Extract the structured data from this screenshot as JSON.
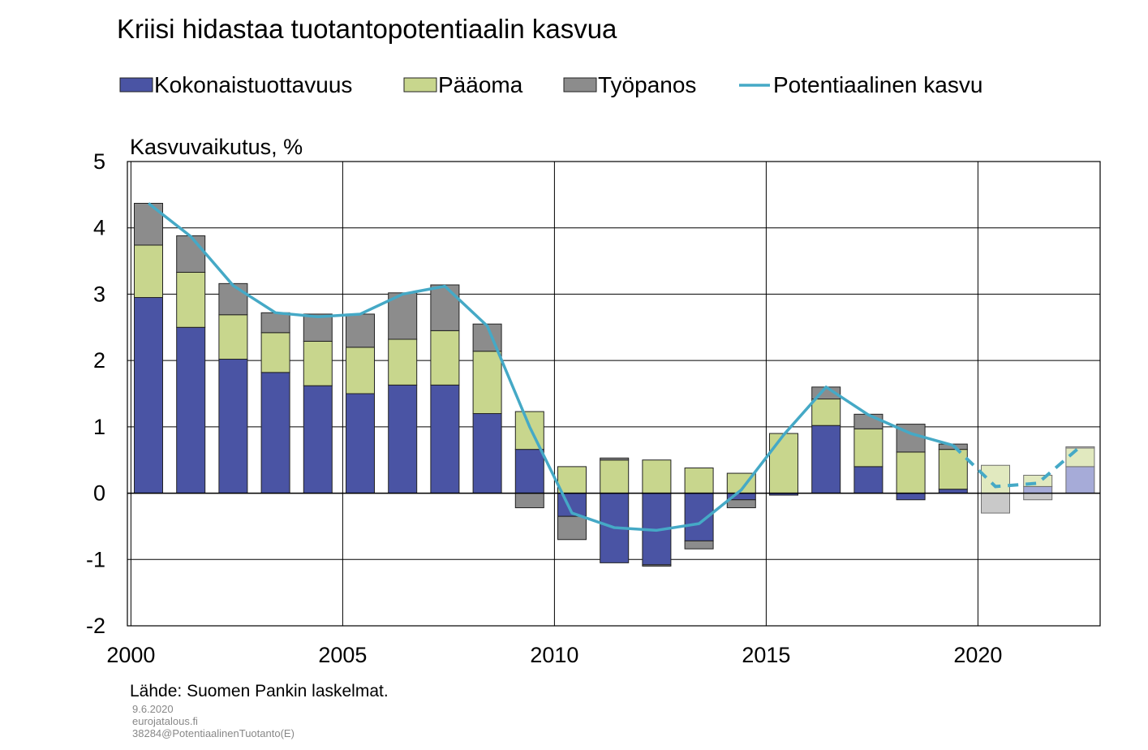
{
  "chart_data": {
    "type": "bar",
    "stacked": true,
    "title": "Kriisi hidastaa tuotantopotentiaalin kasvua",
    "ylabel": "Kasvuvaikutus,  %",
    "xlabel": "",
    "ylim": [
      -2,
      5
    ],
    "yticks": [
      5,
      4,
      3,
      2,
      1,
      0,
      -1,
      -2
    ],
    "xticks": [
      "2000",
      "2005",
      "2010",
      "2015",
      "2020"
    ],
    "grid": true,
    "legend_position": "top",
    "categories": [
      "2000",
      "2001",
      "2002",
      "2003",
      "2004",
      "2005",
      "2006",
      "2007",
      "2008",
      "2009",
      "2010",
      "2011",
      "2012",
      "2013",
      "2014",
      "2015",
      "2016",
      "2017",
      "2018",
      "2019",
      "2020",
      "2021",
      "2022"
    ],
    "forecast_from": "2020",
    "series": [
      {
        "name": "Kokonaistuottavuus",
        "kind": "bar",
        "color": "#4a54a4",
        "forecast_color": "#a6abd8",
        "values": [
          2.95,
          2.5,
          2.02,
          1.82,
          1.62,
          1.5,
          1.63,
          1.63,
          1.2,
          0.66,
          -0.35,
          -1.05,
          -1.08,
          -0.72,
          -0.1,
          -0.03,
          1.02,
          0.4,
          -0.1,
          0.06,
          0.0,
          0.1,
          0.4
        ]
      },
      {
        "name": "Pääoma",
        "kind": "bar",
        "color": "#c8d68d",
        "forecast_color": "#e1e9bf",
        "values": [
          0.79,
          0.83,
          0.67,
          0.6,
          0.67,
          0.7,
          0.69,
          0.82,
          0.94,
          0.57,
          0.4,
          0.5,
          0.5,
          0.38,
          0.3,
          0.9,
          0.4,
          0.57,
          0.62,
          0.6,
          0.42,
          0.17,
          0.28
        ]
      },
      {
        "name": "Työpanos",
        "kind": "bar",
        "color": "#8c8c8c",
        "forecast_color": "#c9c9c9",
        "values": [
          0.63,
          0.55,
          0.47,
          0.3,
          0.41,
          0.5,
          0.7,
          0.69,
          0.41,
          -0.22,
          -0.35,
          0.03,
          -0.02,
          -0.12,
          -0.12,
          0.0,
          0.18,
          0.22,
          0.42,
          0.08,
          -0.3,
          -0.1,
          0.02
        ]
      },
      {
        "name": "Potentiaalinen kasvu",
        "kind": "line",
        "color": "#45a9c6",
        "values": [
          4.37,
          3.87,
          3.13,
          2.72,
          2.66,
          2.7,
          3.0,
          3.12,
          2.52,
          1.0,
          -0.3,
          -0.52,
          -0.56,
          -0.46,
          0.05,
          0.88,
          1.6,
          1.18,
          0.9,
          0.72,
          0.1,
          0.15,
          0.7
        ]
      }
    ],
    "source": "Lähde: Suomen Pankin laskelmat.",
    "meta": [
      "9.6.2020",
      "eurojatalous.fi",
      "38284@PotentiaalinenTuotanto(E)"
    ]
  }
}
